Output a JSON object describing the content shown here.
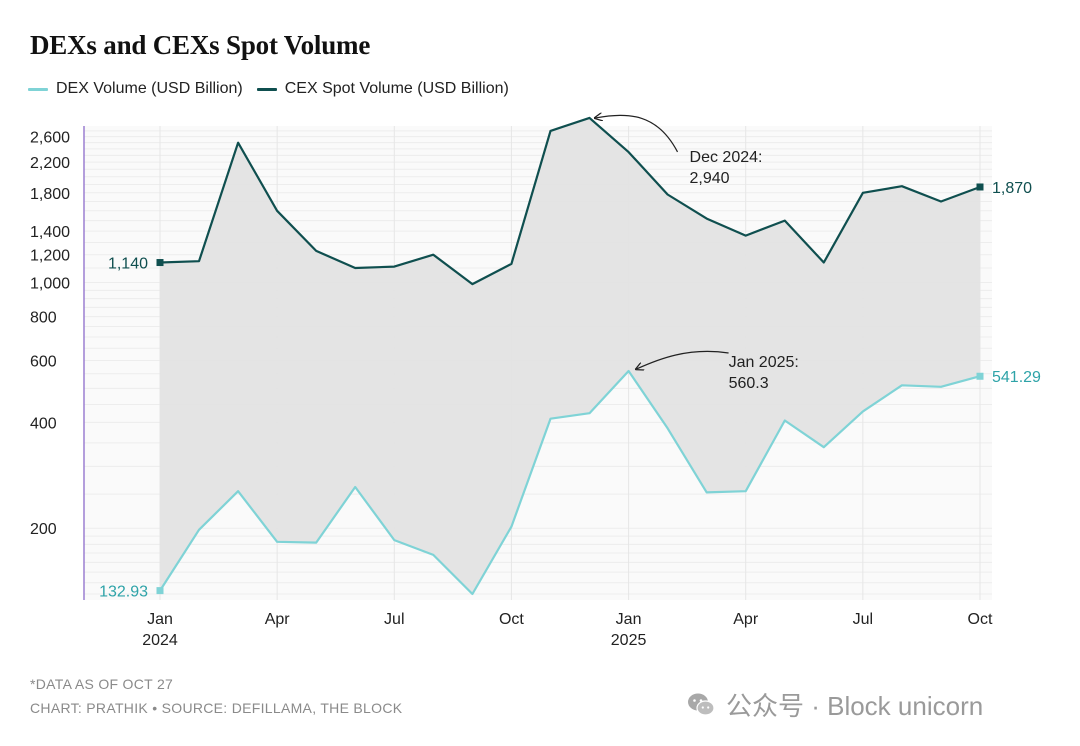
{
  "title": "DEXs and CEXs Spot Volume",
  "legend": [
    {
      "label": "DEX Volume (USD Billion)",
      "color": "#7fd3d6"
    },
    {
      "label": "CEX Spot Volume (USD Billion)",
      "color": "#0f4f4f"
    }
  ],
  "footer": {
    "note": "*DATA AS OF OCT 27",
    "credit": "CHART: PRATHIK • SOURCE: DEFILLAMA, THE BLOCK"
  },
  "watermark": {
    "text": "公众号 · Block unicorn",
    "icon": "wechat-icon"
  },
  "chart_data": {
    "type": "line",
    "title": "DEXs and CEXs Spot Volume",
    "scale": "log",
    "ylim": [
      125,
      2900
    ],
    "y_ticks": [
      200,
      400,
      600,
      800,
      1000,
      1200,
      1400,
      1800,
      2200,
      2600
    ],
    "y_tick_labels": [
      "200",
      "400",
      "600",
      "800",
      "1,000",
      "1,200",
      "1,400",
      "1,800",
      "2,200",
      "2,600"
    ],
    "x": [
      "2024-01",
      "2024-02",
      "2024-03",
      "2024-04",
      "2024-05",
      "2024-06",
      "2024-07",
      "2024-08",
      "2024-09",
      "2024-10",
      "2024-11",
      "2024-12",
      "2025-01",
      "2025-02",
      "2025-03",
      "2025-04",
      "2025-05",
      "2025-06",
      "2025-07",
      "2025-08",
      "2025-09",
      "2025-10"
    ],
    "x_tick_labels": [
      {
        "index": 0,
        "label": "Jan",
        "year": "2024"
      },
      {
        "index": 3,
        "label": "Apr",
        "year": ""
      },
      {
        "index": 6,
        "label": "Jul",
        "year": ""
      },
      {
        "index": 9,
        "label": "Oct",
        "year": ""
      },
      {
        "index": 12,
        "label": "Jan",
        "year": "2025"
      },
      {
        "index": 15,
        "label": "Apr",
        "year": ""
      },
      {
        "index": 18,
        "label": "Jul",
        "year": ""
      },
      {
        "index": 21,
        "label": "Oct",
        "year": ""
      }
    ],
    "grid": true,
    "shade_between_series": true,
    "series": [
      {
        "name": "DEX Volume (USD Billion)",
        "color": "#7fd3d6",
        "values": [
          132.93,
          198,
          255,
          183,
          182,
          262,
          185,
          168,
          130,
          202,
          410,
          425,
          560.3,
          385,
          253,
          255,
          405,
          340,
          430,
          510,
          505,
          541.29
        ],
        "end_labels": {
          "first": "132.93",
          "last": "541.29"
        }
      },
      {
        "name": "CEX Spot Volume (USD Billion)",
        "color": "#0f4f4f",
        "values": [
          1140,
          1150,
          2500,
          1600,
          1230,
          1100,
          1110,
          1200,
          990,
          1130,
          2700,
          2940,
          2350,
          1780,
          1520,
          1360,
          1500,
          1140,
          1800,
          1880,
          1700,
          1870
        ],
        "end_labels": {
          "first": "1,140",
          "last": "1,870"
        }
      }
    ],
    "annotations": [
      {
        "series": 1,
        "index": 11,
        "text_line1": "Dec 2024:",
        "text_line2": "2,940"
      },
      {
        "series": 0,
        "index": 12,
        "text_line1": "Jan 2025:",
        "text_line2": "560.3"
      }
    ]
  }
}
